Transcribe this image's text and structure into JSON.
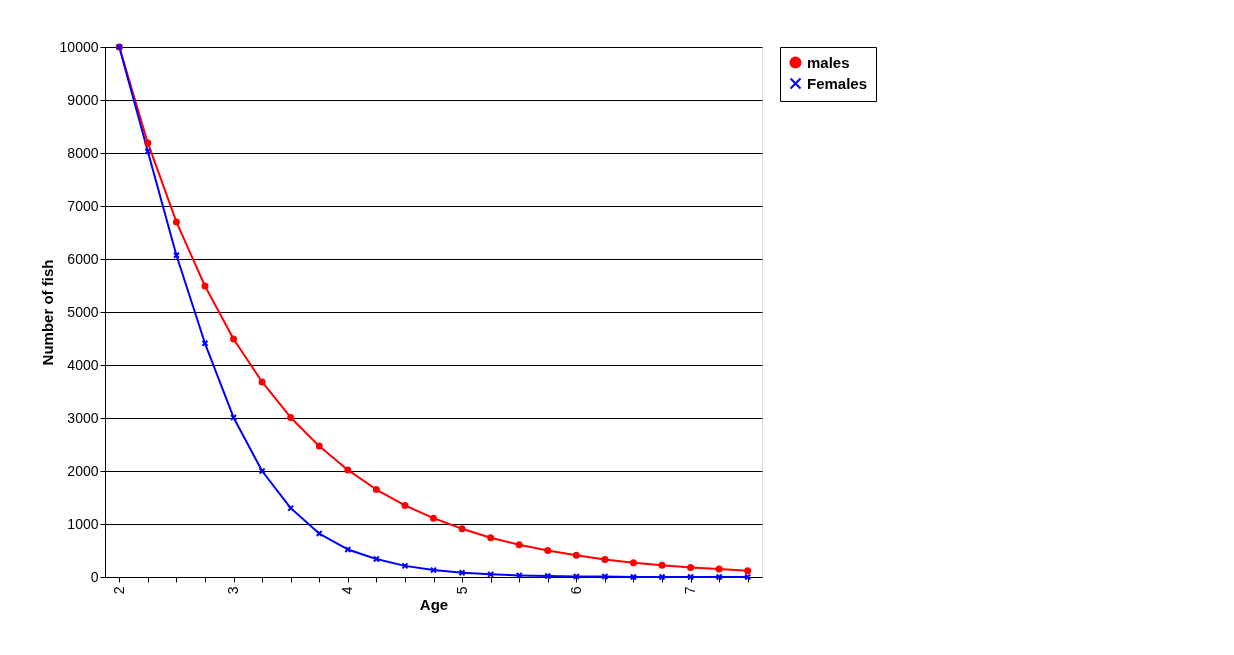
{
  "chart_data": {
    "type": "line",
    "xlabel": "Age",
    "ylabel": "Number of fish",
    "categories": [
      "2",
      null,
      null,
      null,
      "3",
      null,
      null,
      null,
      "4",
      null,
      null,
      null,
      "5",
      null,
      null,
      null,
      "6",
      null,
      null,
      null,
      "7",
      null,
      null
    ],
    "series": [
      {
        "name": "males",
        "color": "#ff0000",
        "marker": "circle",
        "values": [
          10000,
          8190,
          6700,
          5490,
          4490,
          3680,
          3010,
          2470,
          2020,
          1650,
          1350,
          1110,
          910,
          740,
          610,
          500,
          410,
          330,
          270,
          220,
          180,
          150,
          120
        ]
      },
      {
        "name": "Females",
        "color": "#0000ff",
        "marker": "cross",
        "values": [
          10000,
          8030,
          6070,
          4410,
          3010,
          2000,
          1300,
          820,
          520,
          340,
          210,
          130,
          80,
          50,
          30,
          20,
          10,
          10,
          0,
          0,
          0,
          0,
          0
        ]
      }
    ],
    "ylim": [
      0,
      10000
    ],
    "yticks": [
      0,
      1000,
      2000,
      3000,
      4000,
      5000,
      6000,
      7000,
      8000,
      9000,
      10000
    ],
    "grid": "y",
    "legend": "right",
    "line_style": "solid"
  }
}
